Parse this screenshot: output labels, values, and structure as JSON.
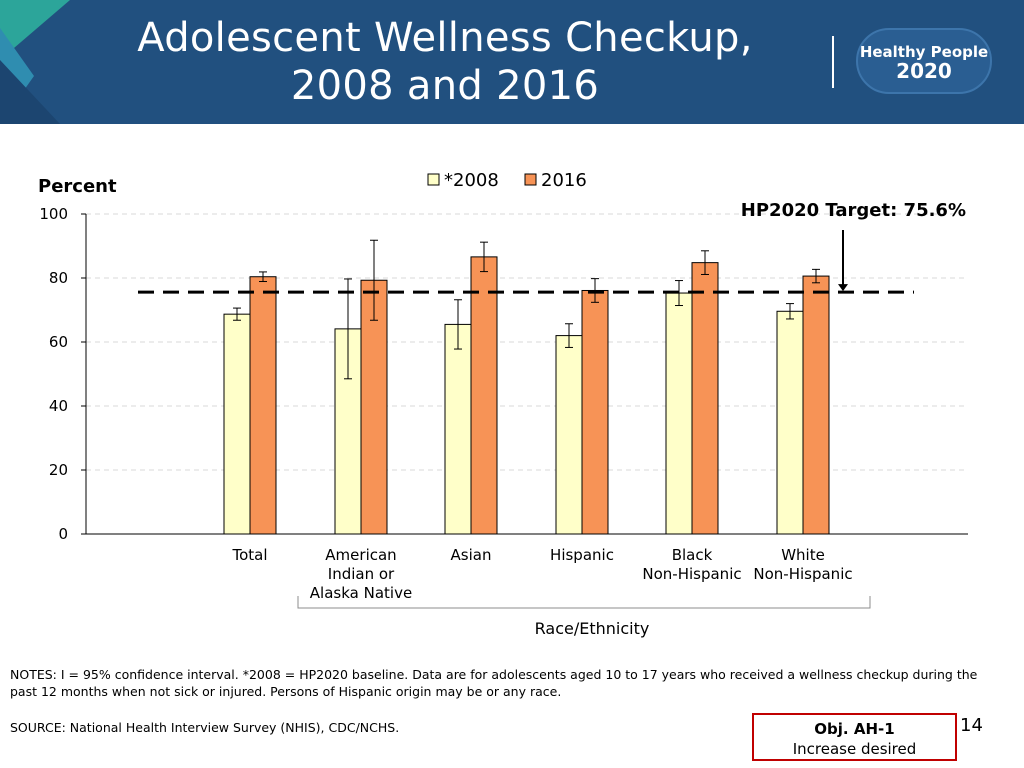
{
  "header": {
    "title_line1": "Adolescent Wellness Checkup,",
    "title_line2": "2008 and 2016",
    "logo_line1": "Healthy People",
    "logo_line2": "2020"
  },
  "colors": {
    "header_bg": "#21507f",
    "series_2008": "#ffffc9",
    "series_2016": "#f79356",
    "target_line": "#000000",
    "obj_border": "#c00000"
  },
  "chart_data": {
    "type": "bar",
    "ylabel": "Percent",
    "xlabel": "Race/Ethnicity",
    "ylim": [
      0,
      100
    ],
    "yticks": [
      0,
      20,
      40,
      60,
      80,
      100
    ],
    "grid": true,
    "legend_position": "top",
    "categories": [
      [
        "Total"
      ],
      [
        "American",
        "Indian or",
        "Alaska Native"
      ],
      [
        "Asian"
      ],
      [
        "Hispanic"
      ],
      [
        "Black",
        "Non-Hispanic"
      ],
      [
        "White",
        "Non-Hispanic"
      ]
    ],
    "series": [
      {
        "name": "*2008",
        "values": [
          68.7,
          64.1,
          65.5,
          62.0,
          75.3,
          69.6
        ],
        "ci_low": [
          66.8,
          48.5,
          57.8,
          58.3,
          71.4,
          67.2
        ],
        "ci_high": [
          70.6,
          79.7,
          73.2,
          65.7,
          79.2,
          72.0
        ]
      },
      {
        "name": "2016",
        "values": [
          80.4,
          79.3,
          86.6,
          76.1,
          84.8,
          80.6
        ],
        "ci_low": [
          78.9,
          66.8,
          82.0,
          72.4,
          81.1,
          78.5
        ],
        "ci_high": [
          81.9,
          91.8,
          91.2,
          79.8,
          88.5,
          82.7
        ]
      }
    ],
    "target": {
      "value": 75.6,
      "label": "HP2020 Target: 75.6%"
    }
  },
  "notes": "NOTES: I = 95% confidence interval. *2008 = HP2020 baseline. Data are for adolescents aged 10 to 17 years who received a wellness checkup during the past 12 months when not sick or injured. Persons of Hispanic origin may be or any race.",
  "source": "SOURCE: National Health Interview Survey (NHIS), CDC/NCHS.",
  "objective": {
    "id": "Obj. AH-1",
    "status": "Increase desired"
  },
  "page_number": "14"
}
